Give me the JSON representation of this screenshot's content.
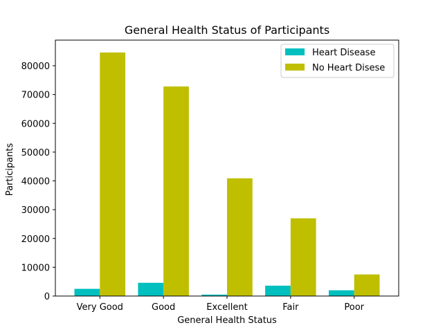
{
  "chart_data": {
    "type": "bar",
    "title": "General Health Status of Participants",
    "xlabel": "General Health Status",
    "ylabel": "Participants",
    "categories": [
      "Very Good",
      "Good",
      "Excellent",
      "Fair",
      "Poor"
    ],
    "series": [
      {
        "name": "Heart Disease",
        "color": "#00bfbf",
        "values": [
          2500,
          4600,
          500,
          3600,
          2000
        ]
      },
      {
        "name": "No Heart Disese",
        "color": "#bfbf00",
        "values": [
          84600,
          72800,
          40900,
          27000,
          7500
        ]
      }
    ],
    "ylim": [
      0,
      88900
    ],
    "yticks": [
      0,
      10000,
      20000,
      30000,
      40000,
      50000,
      60000,
      70000,
      80000
    ],
    "grid": false,
    "legend_position": "top-right"
  }
}
